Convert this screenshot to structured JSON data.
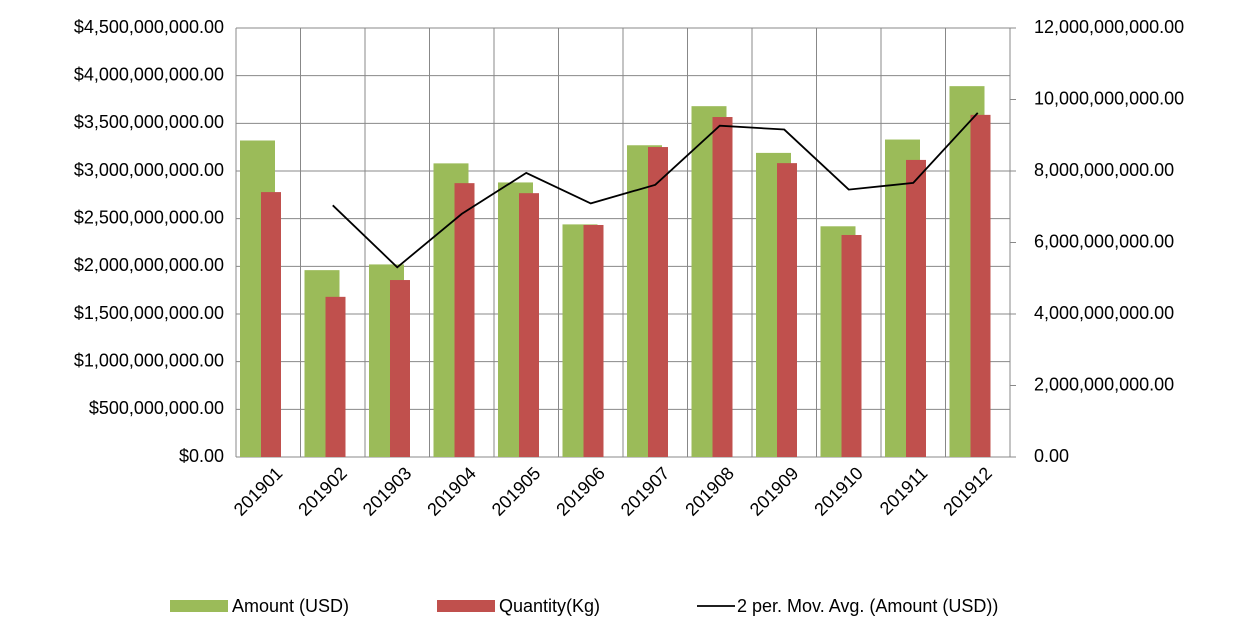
{
  "chart_data": {
    "type": "bar",
    "categories": [
      "201901",
      "201902",
      "201903",
      "201904",
      "201905",
      "201906",
      "201907",
      "201908",
      "201909",
      "201910",
      "201911",
      "201912"
    ],
    "series": [
      {
        "name": "Amount (USD)",
        "color": "#9bbb59",
        "values": [
          3320000000,
          1960000000,
          2020000000,
          3080000000,
          2880000000,
          2440000000,
          3270000000,
          3680000000,
          3190000000,
          2420000000,
          3330000000,
          3890000000
        ]
      },
      {
        "name": "Quantity(Kg)",
        "color": "#c0504d",
        "axis": "y2",
        "values": [
          7410000000,
          4480000000,
          4950000000,
          7660000000,
          7380000000,
          6490000000,
          8670000000,
          9510000000,
          8220000000,
          6210000000,
          8310000000,
          9570000000
        ]
      },
      {
        "name": "2 per. Mov. Avg. (Amount (USD))",
        "color": "#000000",
        "type": "line",
        "values": [
          null,
          2640000000,
          1990000000,
          2550000000,
          2980000000,
          2660000000,
          2855000000,
          3475000000,
          3435000000,
          2805000000,
          2875000000,
          3610000000
        ]
      }
    ],
    "ylim": [
      0,
      4500000000
    ],
    "yticks": [
      {
        "value": 0,
        "label": "$0.00"
      },
      {
        "value": 500000000,
        "label": "$500,000,000.00"
      },
      {
        "value": 1000000000,
        "label": "$1,000,000,000.00"
      },
      {
        "value": 1500000000,
        "label": "$1,500,000,000.00"
      },
      {
        "value": 2000000000,
        "label": "$2,000,000,000.00"
      },
      {
        "value": 2500000000,
        "label": "$2,500,000,000.00"
      },
      {
        "value": 3000000000,
        "label": "$3,000,000,000.00"
      },
      {
        "value": 3500000000,
        "label": "$3,500,000,000.00"
      },
      {
        "value": 4000000000,
        "label": "$4,000,000,000.00"
      },
      {
        "value": 4500000000,
        "label": "$4,500,000,000.00"
      }
    ],
    "y2lim": [
      0,
      12000000000
    ],
    "y2ticks": [
      {
        "value": 0,
        "label": "0.00"
      },
      {
        "value": 2000000000,
        "label": "2,000,000,000.00"
      },
      {
        "value": 4000000000,
        "label": "4,000,000,000.00"
      },
      {
        "value": 6000000000,
        "label": "6,000,000,000.00"
      },
      {
        "value": 8000000000,
        "label": "8,000,000,000.00"
      },
      {
        "value": 10000000000,
        "label": "10,000,000,000.00"
      },
      {
        "value": 12000000000,
        "label": "12,000,000,000.00"
      }
    ],
    "grid": true
  }
}
